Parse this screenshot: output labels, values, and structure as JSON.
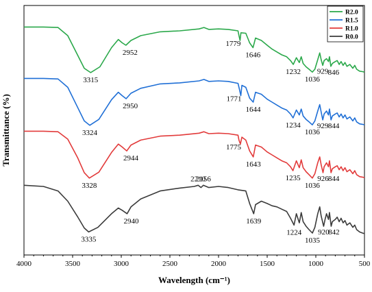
{
  "chart_data": {
    "type": "line",
    "xlabel": "Wavelength (cm⁻¹)",
    "ylabel": "Transmittance (%)",
    "xlim": [
      4000,
      500
    ],
    "x_ticks": [
      4000,
      3500,
      3000,
      2500,
      2000,
      1500,
      1000,
      500
    ],
    "grid": false,
    "legend_placement": "top-right",
    "series": [
      {
        "name": "R2.0",
        "color": "#2aa84a",
        "points": [
          [
            4000,
            0.98
          ],
          [
            3800,
            0.98
          ],
          [
            3650,
            0.97
          ],
          [
            3550,
            0.8
          ],
          [
            3450,
            0.4
          ],
          [
            3380,
            0.12
          ],
          [
            3315,
            0.03
          ],
          [
            3220,
            0.15
          ],
          [
            3100,
            0.55
          ],
          [
            3030,
            0.72
          ],
          [
            2990,
            0.65
          ],
          [
            2952,
            0.6
          ],
          [
            2900,
            0.7
          ],
          [
            2800,
            0.8
          ],
          [
            2600,
            0.88
          ],
          [
            2400,
            0.9
          ],
          [
            2200,
            0.94
          ],
          [
            2150,
            0.97
          ],
          [
            2100,
            0.93
          ],
          [
            2000,
            0.94
          ],
          [
            1900,
            0.93
          ],
          [
            1800,
            0.9
          ],
          [
            1790,
            0.8
          ],
          [
            1779,
            0.7
          ],
          [
            1770,
            0.86
          ],
          [
            1720,
            0.85
          ],
          [
            1680,
            0.65
          ],
          [
            1646,
            0.55
          ],
          [
            1620,
            0.75
          ],
          [
            1560,
            0.7
          ],
          [
            1500,
            0.6
          ],
          [
            1450,
            0.52
          ],
          [
            1400,
            0.46
          ],
          [
            1350,
            0.4
          ],
          [
            1300,
            0.36
          ],
          [
            1260,
            0.28
          ],
          [
            1232,
            0.2
          ],
          [
            1200,
            0.34
          ],
          [
            1170,
            0.24
          ],
          [
            1150,
            0.36
          ],
          [
            1130,
            0.22
          ],
          [
            1100,
            0.15
          ],
          [
            1070,
            0.1
          ],
          [
            1036,
            0.04
          ],
          [
            1010,
            0.1
          ],
          [
            980,
            0.3
          ],
          [
            960,
            0.44
          ],
          [
            945,
            0.3
          ],
          [
            929,
            0.18
          ],
          [
            915,
            0.28
          ],
          [
            890,
            0.32
          ],
          [
            870,
            0.26
          ],
          [
            860,
            0.36
          ],
          [
            846,
            0.16
          ],
          [
            830,
            0.22
          ],
          [
            800,
            0.26
          ],
          [
            780,
            0.28
          ],
          [
            760,
            0.2
          ],
          [
            740,
            0.26
          ],
          [
            720,
            0.18
          ],
          [
            700,
            0.24
          ],
          [
            680,
            0.16
          ],
          [
            650,
            0.2
          ],
          [
            620,
            0.12
          ],
          [
            600,
            0.18
          ],
          [
            580,
            0.1
          ],
          [
            550,
            0.06
          ],
          [
            520,
            0.05
          ],
          [
            500,
            0.04
          ]
        ],
        "peak_labels": [
          [
            "3315",
            "3315"
          ],
          [
            "2952",
            "2952"
          ],
          [
            "1779",
            "1779"
          ],
          [
            "1646",
            "1646"
          ],
          [
            "1232",
            "1232"
          ],
          [
            "1036",
            "1036"
          ],
          [
            "929",
            "929"
          ],
          [
            "846",
            "846"
          ]
        ]
      },
      {
        "name": "R1.5",
        "color": "#1f6fd6",
        "points": [
          [
            4000,
            0.98
          ],
          [
            3800,
            0.98
          ],
          [
            3650,
            0.97
          ],
          [
            3550,
            0.8
          ],
          [
            3450,
            0.4
          ],
          [
            3380,
            0.12
          ],
          [
            3324,
            0.03
          ],
          [
            3230,
            0.15
          ],
          [
            3100,
            0.55
          ],
          [
            3030,
            0.7
          ],
          [
            2990,
            0.63
          ],
          [
            2950,
            0.57
          ],
          [
            2900,
            0.68
          ],
          [
            2800,
            0.78
          ],
          [
            2600,
            0.87
          ],
          [
            2400,
            0.89
          ],
          [
            2200,
            0.93
          ],
          [
            2150,
            0.96
          ],
          [
            2100,
            0.92
          ],
          [
            2000,
            0.93
          ],
          [
            1900,
            0.92
          ],
          [
            1800,
            0.88
          ],
          [
            1785,
            0.76
          ],
          [
            1771,
            0.63
          ],
          [
            1760,
            0.84
          ],
          [
            1720,
            0.8
          ],
          [
            1680,
            0.58
          ],
          [
            1644,
            0.5
          ],
          [
            1620,
            0.7
          ],
          [
            1560,
            0.66
          ],
          [
            1500,
            0.56
          ],
          [
            1450,
            0.5
          ],
          [
            1400,
            0.44
          ],
          [
            1350,
            0.38
          ],
          [
            1300,
            0.34
          ],
          [
            1260,
            0.26
          ],
          [
            1234,
            0.18
          ],
          [
            1200,
            0.34
          ],
          [
            1170,
            0.24
          ],
          [
            1150,
            0.36
          ],
          [
            1130,
            0.22
          ],
          [
            1100,
            0.15
          ],
          [
            1070,
            0.1
          ],
          [
            1036,
            0.04
          ],
          [
            1010,
            0.12
          ],
          [
            980,
            0.32
          ],
          [
            960,
            0.45
          ],
          [
            945,
            0.3
          ],
          [
            929,
            0.14
          ],
          [
            915,
            0.26
          ],
          [
            890,
            0.32
          ],
          [
            870,
            0.24
          ],
          [
            860,
            0.36
          ],
          [
            844,
            0.14
          ],
          [
            830,
            0.22
          ],
          [
            800,
            0.26
          ],
          [
            780,
            0.28
          ],
          [
            760,
            0.2
          ],
          [
            740,
            0.26
          ],
          [
            720,
            0.18
          ],
          [
            700,
            0.24
          ],
          [
            680,
            0.16
          ],
          [
            650,
            0.2
          ],
          [
            620,
            0.12
          ],
          [
            600,
            0.18
          ],
          [
            580,
            0.1
          ],
          [
            550,
            0.06
          ],
          [
            520,
            0.05
          ],
          [
            500,
            0.04
          ]
        ],
        "peak_labels": [
          [
            "3324",
            "3324"
          ],
          [
            "2950",
            "2950"
          ],
          [
            "1771",
            "1771"
          ],
          [
            "1644",
            "1644"
          ],
          [
            "1234",
            "1234"
          ],
          [
            "1036",
            "1036"
          ],
          [
            "929",
            "929"
          ],
          [
            "844",
            "844"
          ]
        ]
      },
      {
        "name": "R1.0",
        "color": "#e23a3a",
        "points": [
          [
            4000,
            0.98
          ],
          [
            3800,
            0.98
          ],
          [
            3650,
            0.97
          ],
          [
            3550,
            0.82
          ],
          [
            3450,
            0.45
          ],
          [
            3380,
            0.14
          ],
          [
            3328,
            0.03
          ],
          [
            3230,
            0.15
          ],
          [
            3100,
            0.55
          ],
          [
            3030,
            0.72
          ],
          [
            2990,
            0.66
          ],
          [
            2944,
            0.58
          ],
          [
            2900,
            0.7
          ],
          [
            2800,
            0.8
          ],
          [
            2600,
            0.88
          ],
          [
            2400,
            0.9
          ],
          [
            2200,
            0.94
          ],
          [
            2150,
            0.97
          ],
          [
            2100,
            0.93
          ],
          [
            2000,
            0.94
          ],
          [
            1900,
            0.93
          ],
          [
            1800,
            0.9
          ],
          [
            1790,
            0.8
          ],
          [
            1775,
            0.72
          ],
          [
            1760,
            0.86
          ],
          [
            1720,
            0.8
          ],
          [
            1680,
            0.58
          ],
          [
            1643,
            0.46
          ],
          [
            1620,
            0.7
          ],
          [
            1560,
            0.66
          ],
          [
            1500,
            0.56
          ],
          [
            1450,
            0.5
          ],
          [
            1400,
            0.44
          ],
          [
            1350,
            0.38
          ],
          [
            1300,
            0.34
          ],
          [
            1260,
            0.26
          ],
          [
            1235,
            0.18
          ],
          [
            1200,
            0.38
          ],
          [
            1170,
            0.24
          ],
          [
            1150,
            0.4
          ],
          [
            1130,
            0.24
          ],
          [
            1100,
            0.16
          ],
          [
            1070,
            0.1
          ],
          [
            1036,
            0.03
          ],
          [
            1010,
            0.12
          ],
          [
            980,
            0.34
          ],
          [
            960,
            0.46
          ],
          [
            945,
            0.3
          ],
          [
            926,
            0.14
          ],
          [
            915,
            0.26
          ],
          [
            890,
            0.34
          ],
          [
            870,
            0.26
          ],
          [
            860,
            0.38
          ],
          [
            844,
            0.14
          ],
          [
            830,
            0.22
          ],
          [
            800,
            0.26
          ],
          [
            780,
            0.28
          ],
          [
            760,
            0.2
          ],
          [
            740,
            0.26
          ],
          [
            720,
            0.18
          ],
          [
            700,
            0.24
          ],
          [
            680,
            0.16
          ],
          [
            650,
            0.2
          ],
          [
            620,
            0.12
          ],
          [
            600,
            0.18
          ],
          [
            580,
            0.1
          ],
          [
            550,
            0.06
          ],
          [
            520,
            0.05
          ],
          [
            500,
            0.04
          ]
        ],
        "peak_labels": [
          [
            "3328",
            "3328"
          ],
          [
            "2944",
            "2944"
          ],
          [
            "1775",
            "1775"
          ],
          [
            "1643",
            "1643"
          ],
          [
            "1235",
            "1235"
          ],
          [
            "1036",
            "1036"
          ],
          [
            "926",
            "926"
          ],
          [
            "844",
            "844"
          ]
        ]
      },
      {
        "name": "R0.0",
        "color": "#3a3a3a",
        "points": [
          [
            4000,
            0.9
          ],
          [
            3800,
            0.88
          ],
          [
            3650,
            0.8
          ],
          [
            3550,
            0.62
          ],
          [
            3450,
            0.35
          ],
          [
            3380,
            0.15
          ],
          [
            3335,
            0.08
          ],
          [
            3240,
            0.16
          ],
          [
            3100,
            0.4
          ],
          [
            3030,
            0.5
          ],
          [
            2990,
            0.46
          ],
          [
            2940,
            0.4
          ],
          [
            2900,
            0.52
          ],
          [
            2800,
            0.66
          ],
          [
            2600,
            0.8
          ],
          [
            2400,
            0.85
          ],
          [
            2250,
            0.88
          ],
          [
            2210,
            0.9
          ],
          [
            2180,
            0.86
          ],
          [
            2156,
            0.9
          ],
          [
            2100,
            0.86
          ],
          [
            2000,
            0.88
          ],
          [
            1900,
            0.86
          ],
          [
            1800,
            0.82
          ],
          [
            1720,
            0.8
          ],
          [
            1680,
            0.58
          ],
          [
            1639,
            0.4
          ],
          [
            1620,
            0.56
          ],
          [
            1560,
            0.62
          ],
          [
            1500,
            0.58
          ],
          [
            1450,
            0.54
          ],
          [
            1400,
            0.52
          ],
          [
            1350,
            0.48
          ],
          [
            1300,
            0.44
          ],
          [
            1260,
            0.32
          ],
          [
            1224,
            0.2
          ],
          [
            1200,
            0.4
          ],
          [
            1170,
            0.24
          ],
          [
            1150,
            0.42
          ],
          [
            1130,
            0.26
          ],
          [
            1100,
            0.18
          ],
          [
            1070,
            0.12
          ],
          [
            1035,
            0.06
          ],
          [
            1010,
            0.16
          ],
          [
            980,
            0.4
          ],
          [
            960,
            0.52
          ],
          [
            945,
            0.36
          ],
          [
            920,
            0.18
          ],
          [
            905,
            0.3
          ],
          [
            890,
            0.4
          ],
          [
            870,
            0.3
          ],
          [
            860,
            0.42
          ],
          [
            842,
            0.18
          ],
          [
            830,
            0.26
          ],
          [
            800,
            0.3
          ],
          [
            780,
            0.34
          ],
          [
            760,
            0.26
          ],
          [
            740,
            0.32
          ],
          [
            720,
            0.24
          ],
          [
            700,
            0.28
          ],
          [
            680,
            0.2
          ],
          [
            650,
            0.24
          ],
          [
            620,
            0.16
          ],
          [
            600,
            0.2
          ],
          [
            580,
            0.12
          ],
          [
            550,
            0.08
          ],
          [
            520,
            0.06
          ],
          [
            500,
            0.05
          ]
        ],
        "peak_labels": [
          [
            "3335",
            "3335"
          ],
          [
            "2940",
            "2940"
          ],
          [
            "2210",
            "2210"
          ],
          [
            "2156",
            "2156"
          ],
          [
            "1639",
            "1639"
          ],
          [
            "1224",
            "1224"
          ],
          [
            "1035",
            "1035"
          ],
          [
            "920",
            "920"
          ],
          [
            "842",
            "842"
          ]
        ]
      }
    ]
  }
}
